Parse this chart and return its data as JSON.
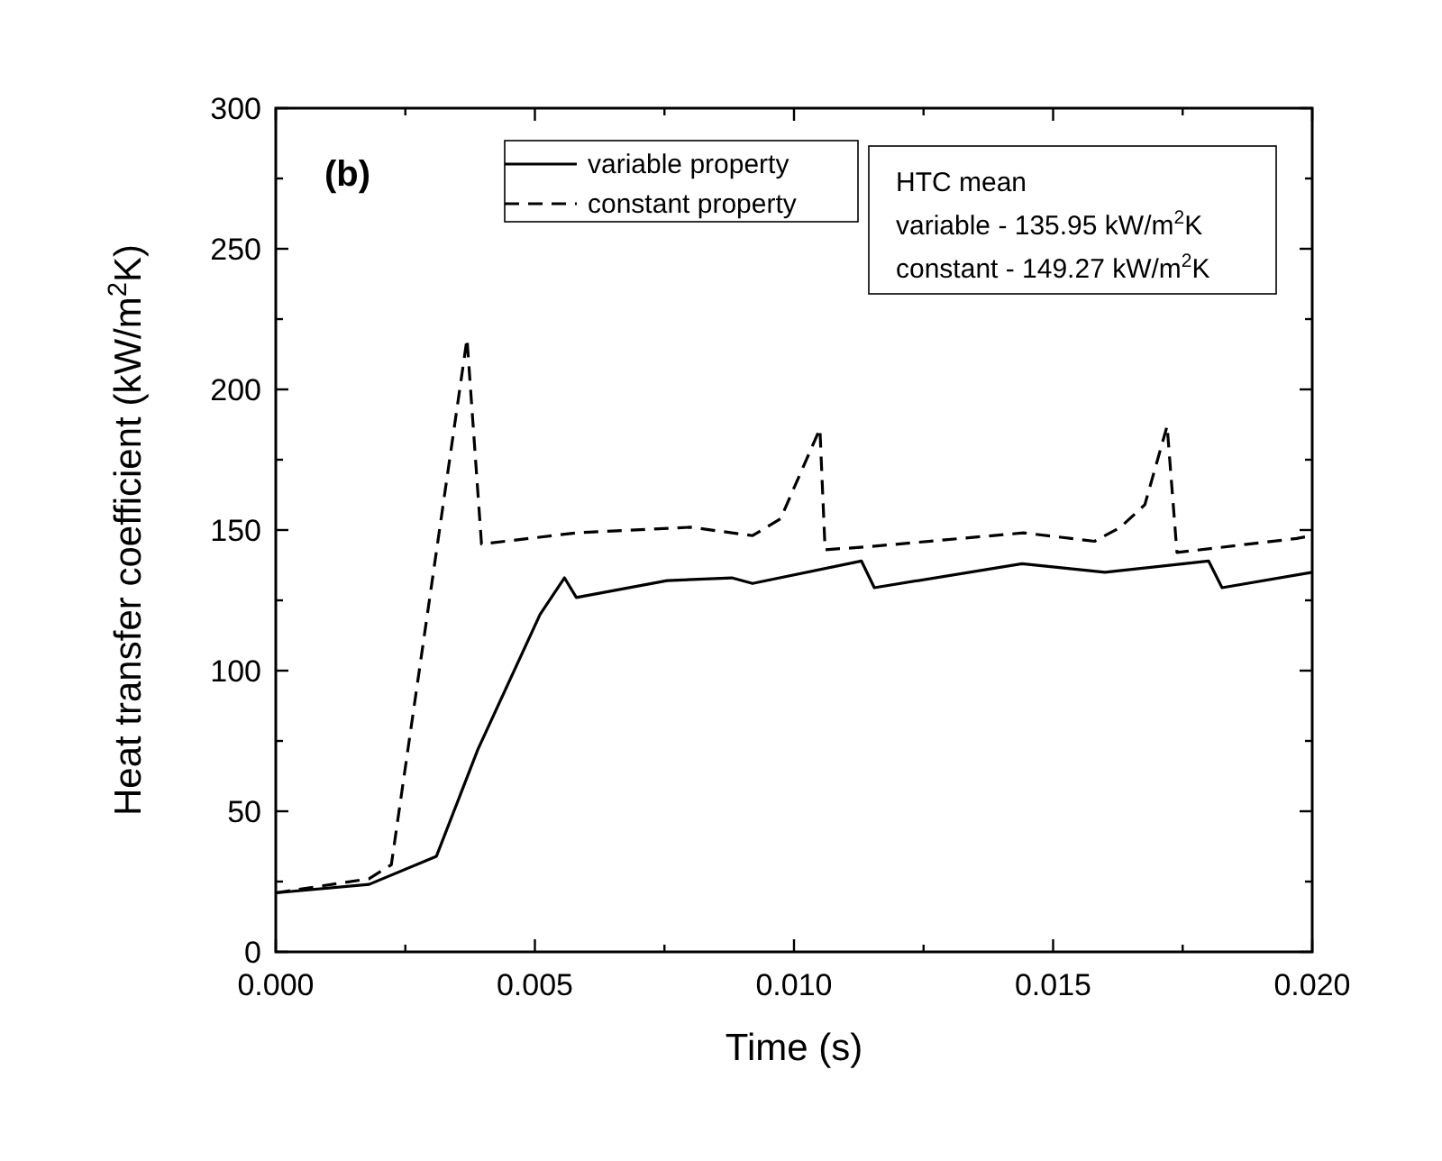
{
  "chart_data": {
    "type": "line",
    "xlabel": "Time (s)",
    "ylabel": "Heat transfer coefficient (kW/m$^{2}$K)",
    "xlim": [
      0,
      0.02
    ],
    "ylim": [
      0,
      300
    ],
    "xticks": [
      {
        "value": 0,
        "label": "0.000"
      },
      {
        "value": 0.0025,
        "label": null
      },
      {
        "value": 0.005,
        "label": "0.005"
      },
      {
        "value": 0.0075,
        "label": null
      },
      {
        "value": 0.01,
        "label": "0.010"
      },
      {
        "value": 0.0125,
        "label": null
      },
      {
        "value": 0.015,
        "label": "0.015"
      },
      {
        "value": 0.0175,
        "label": null
      },
      {
        "value": 0.02,
        "label": "0.020"
      }
    ],
    "yticks": [
      0,
      {
        "value": 25,
        "label": null
      },
      50,
      {
        "value": 75,
        "label": null
      },
      100,
      {
        "value": 125,
        "label": null
      },
      150,
      {
        "value": 175,
        "label": null
      },
      200,
      {
        "value": 225,
        "label": null
      },
      250,
      {
        "value": 275,
        "label": null
      },
      300
    ],
    "legend": "top",
    "grid": false,
    "marker": "none",
    "series": [
      {
        "name": "variable property",
        "color": "#000000",
        "line_style": "solid",
        "x": [
          0,
          0.0018,
          0.0031,
          0.0039,
          0.0051,
          0.00557,
          0.0058,
          0.00755,
          0.0088,
          0.0092,
          0.0113,
          0.01155,
          0.0144,
          0.016,
          0.018,
          0.01826,
          0.02
        ],
        "values": [
          21,
          24,
          34,
          72,
          120,
          133,
          126,
          132,
          133,
          131,
          139,
          129.5,
          138,
          135,
          139,
          129.5,
          135
        ]
      },
      {
        "name": "constant property",
        "color": "#000000",
        "line_style": "dashed",
        "x": [
          0,
          0.0018,
          0.00223,
          0.00369,
          0.00397,
          0.0058,
          0.008,
          0.0092,
          0.00974,
          0.0105,
          0.0106,
          0.0114,
          0.01443,
          0.0158,
          0.0163,
          0.01677,
          0.0172,
          0.01739,
          0.0197,
          0.02
        ],
        "values": [
          21,
          26,
          31,
          218,
          145,
          149,
          151,
          148,
          154,
          186,
          143,
          144,
          149,
          146,
          151,
          159,
          187,
          142,
          147,
          148
        ]
      }
    ],
    "annotations": [
      "(b)",
      "HTC mean",
      "variable - 135.95 kW/m$^{2}$K",
      "constant - 149.27 kW/m$^{2}$K"
    ]
  }
}
